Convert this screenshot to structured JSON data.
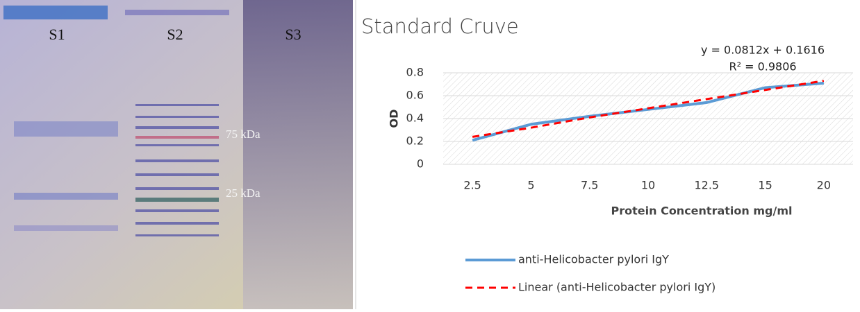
{
  "gel": {
    "lanes": [
      "S1",
      "S2",
      "S3"
    ],
    "markers": [
      "75 kDa",
      "25 kDa"
    ]
  },
  "chart_data": {
    "type": "line",
    "title": "Standard Cruve",
    "annotations": [
      "y = 0.0812x + 0.1616",
      "R² = 0.9806"
    ],
    "x_label": "Protein Concentration mg/ml",
    "y_label": "OD",
    "categories": [
      "2.5",
      "5",
      "7.5",
      "10",
      "12.5",
      "15",
      "20"
    ],
    "series": [
      {
        "name": "anti-Helicobacter pylori IgY",
        "color": "#5b9bd5",
        "values": [
          0.21,
          0.35,
          0.42,
          0.48,
          0.54,
          0.67,
          0.71
        ]
      },
      {
        "name": "Linear (anti-Helicobacter pylori IgY)",
        "color": "#ff0000",
        "dashed": true,
        "values": [
          0.24,
          0.32,
          0.41,
          0.49,
          0.57,
          0.65,
          0.73
        ]
      }
    ],
    "ylim": [
      0,
      0.8
    ],
    "yticks": [
      0,
      0.2,
      0.4,
      0.6,
      0.8
    ],
    "legend": "bottom"
  }
}
